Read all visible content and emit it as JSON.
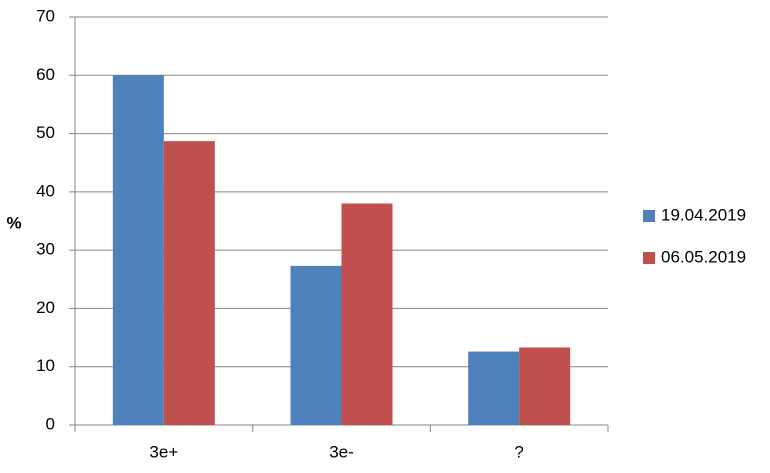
{
  "chart_data": {
    "type": "bar",
    "y_label": "%",
    "categories": [
      "3e+",
      "3e-",
      "?"
    ],
    "series": [
      {
        "name": "19.04.2019",
        "color": "#4f81bd",
        "values": [
          60,
          27.3,
          12.6
        ]
      },
      {
        "name": "06.05.2019",
        "color": "#c0504d",
        "values": [
          48.7,
          38,
          13.3
        ]
      }
    ],
    "ylim": [
      0,
      70
    ],
    "yticks": [
      0,
      10,
      20,
      30,
      40,
      50,
      60,
      70
    ],
    "grid": true,
    "legend": "right"
  }
}
